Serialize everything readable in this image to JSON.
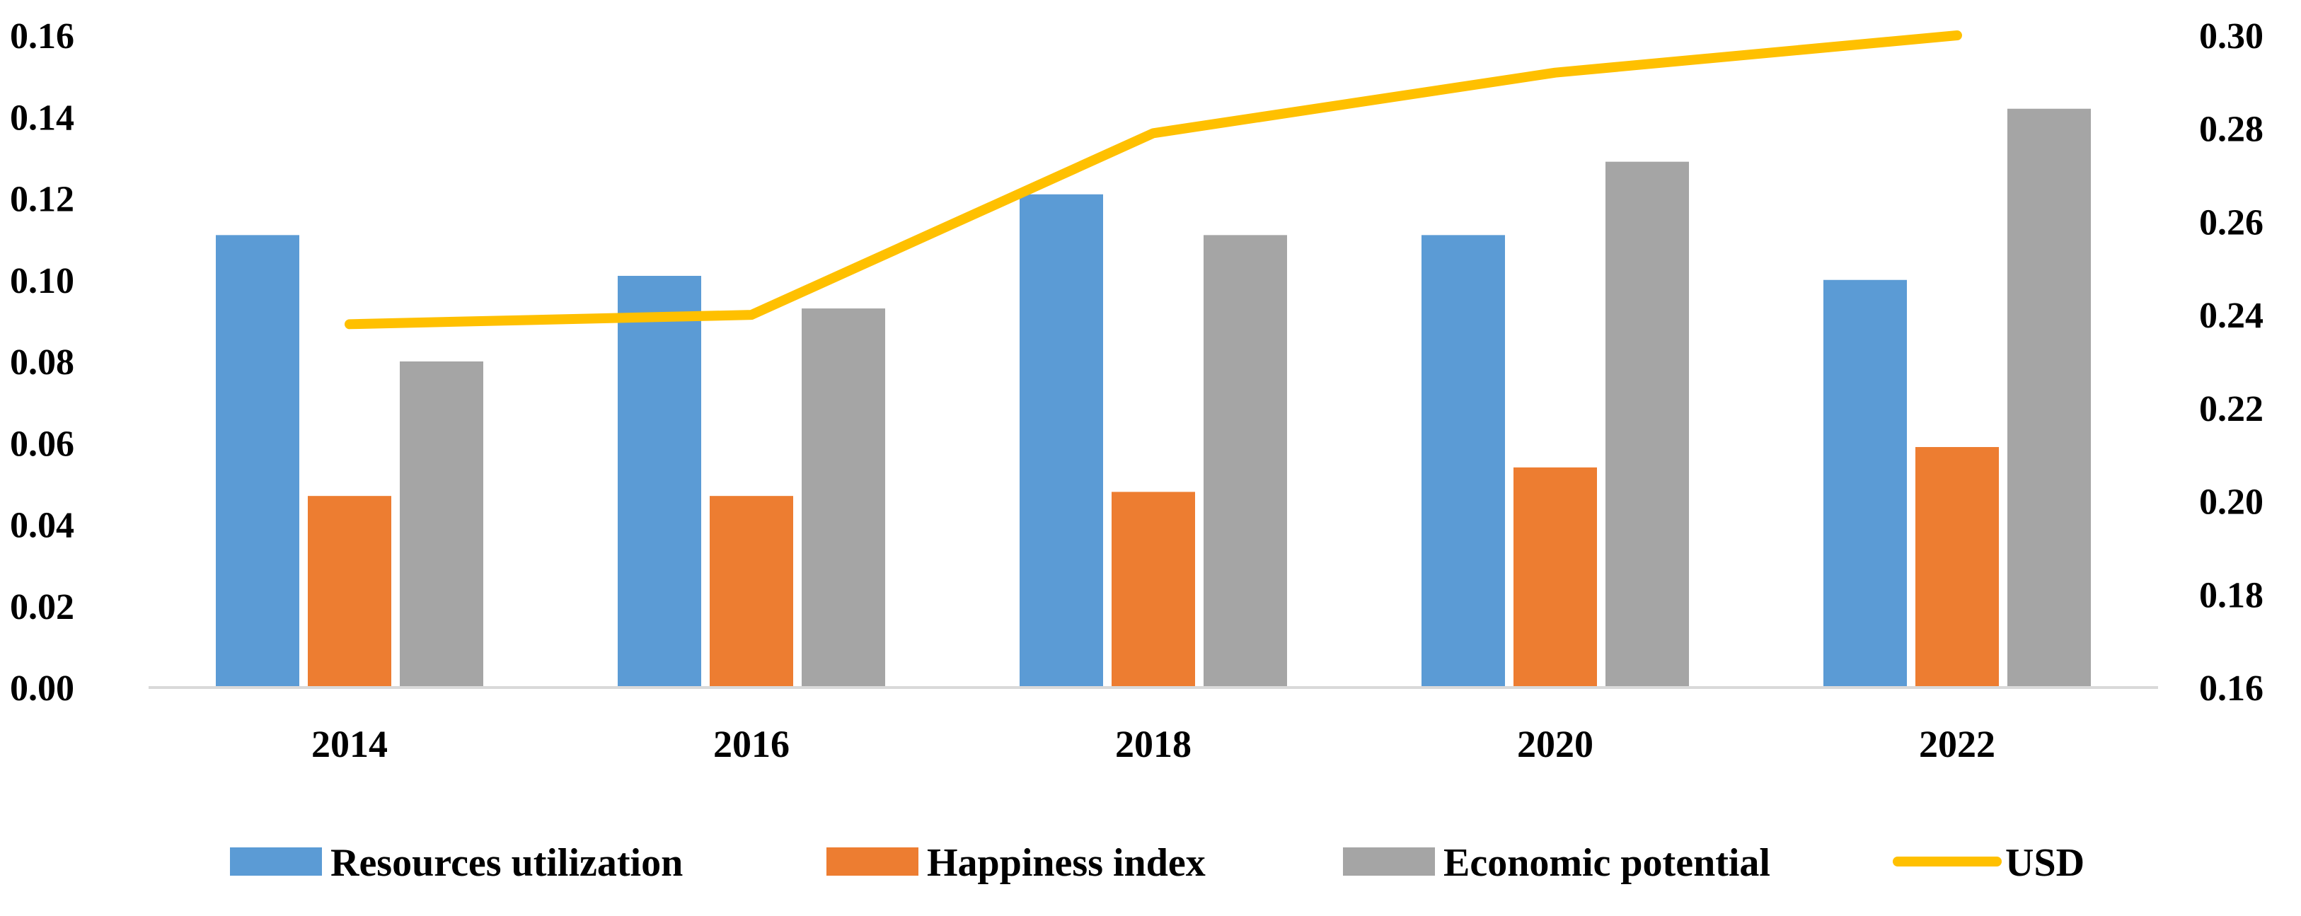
{
  "chart_data": {
    "type": "bar",
    "categories": [
      "2014",
      "2016",
      "2018",
      "2020",
      "2022"
    ],
    "series": [
      {
        "name": "Resources utilization",
        "type": "bar",
        "axis": "left",
        "color": "#5B9BD5",
        "values": [
          0.111,
          0.101,
          0.121,
          0.111,
          0.1
        ]
      },
      {
        "name": "Happiness index",
        "type": "bar",
        "axis": "left",
        "color": "#ED7D31",
        "values": [
          0.047,
          0.047,
          0.048,
          0.054,
          0.059
        ]
      },
      {
        "name": "Economic potential",
        "type": "bar",
        "axis": "left",
        "color": "#A5A5A5",
        "values": [
          0.08,
          0.093,
          0.111,
          0.129,
          0.142
        ]
      },
      {
        "name": "USD",
        "type": "line",
        "axis": "right",
        "color": "#FFC000",
        "values": [
          0.238,
          0.24,
          0.279,
          0.292,
          0.3
        ]
      }
    ],
    "y_left": {
      "min": 0,
      "max": 0.16,
      "ticks": [
        "0.00",
        "0.02",
        "0.04",
        "0.06",
        "0.08",
        "0.10",
        "0.12",
        "0.14",
        "0.16"
      ]
    },
    "y_right": {
      "min": 0.16,
      "max": 0.3,
      "ticks": [
        "0.16",
        "0.18",
        "0.20",
        "0.22",
        "0.24",
        "0.26",
        "0.28",
        "0.30"
      ]
    },
    "grid": false,
    "legend_position": "bottom"
  }
}
